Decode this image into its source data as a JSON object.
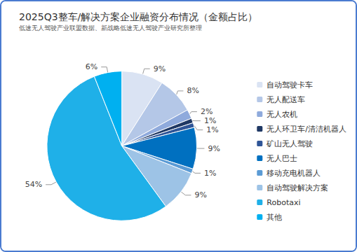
{
  "chart_data": {
    "type": "pie",
    "title": "2025Q3整车/解决方案企业融资分布情况（金额占比）",
    "subtitle": "低速无人驾驶产业联盟数据、新战略低速无人驾驶产业研究所整理",
    "categories": [
      "自动驾驶卡车",
      "无人配送车",
      "无人农机",
      "无人环卫车/清洁机器人",
      "矿山无人驾驶",
      "无人巴士",
      "移动充电机器人",
      "自动驾驶解决方案",
      "Robotaxi",
      "其他"
    ],
    "values": [
      9,
      8,
      2,
      1,
      1,
      9,
      1,
      9,
      54,
      6
    ],
    "value_labels": [
      "9%",
      "8%",
      "2%",
      "1%",
      "1%",
      "9%",
      "1%",
      "9%",
      "54%",
      "6%"
    ],
    "colors": [
      "#dae3f3",
      "#b4c7e7",
      "#8faadc",
      "#1f3864",
      "#2f5597",
      "#0070c0",
      "#5b9bd5",
      "#9dc3e6",
      "#1fb0e8",
      "#00b0f0"
    ],
    "data_labels": true,
    "legend": "right"
  }
}
